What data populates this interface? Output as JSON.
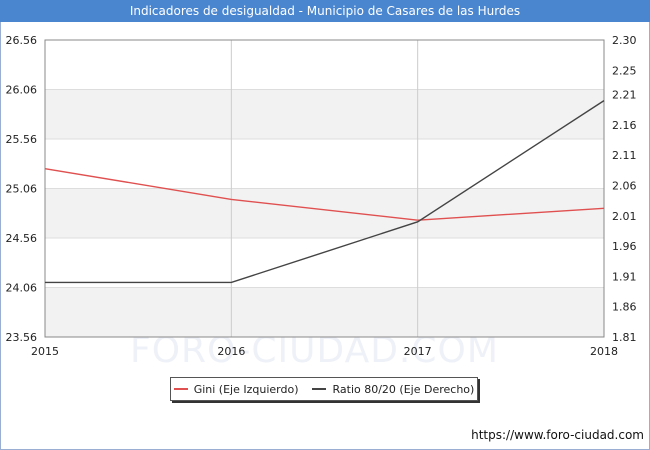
{
  "header": {
    "title": "Indicadores de desigualdad - Municipio de Casares de las Hurdes"
  },
  "watermark": "FORO-CIUDAD.COM",
  "footer": {
    "url": "https://www.foro-ciudad.com"
  },
  "colors": {
    "header_bg": "#4a86d0",
    "gini": "#e05050",
    "ratio": "#444444",
    "band": "#f2f2f2"
  },
  "chart_data": {
    "type": "line",
    "x": [
      "2015",
      "2016",
      "2017",
      "2018"
    ],
    "y_left": {
      "ticks": [
        "23.56",
        "24.06",
        "24.56",
        "25.06",
        "25.56",
        "26.06",
        "26.56"
      ],
      "range": [
        23.56,
        26.56
      ]
    },
    "y_right": {
      "ticks": [
        "1.81",
        "1.86",
        "1.91",
        "1.96",
        "2.01",
        "2.06",
        "2.11",
        "2.16",
        "2.21",
        "2.25",
        "2.30"
      ],
      "range": [
        1.81,
        2.3
      ]
    },
    "series": [
      {
        "name": "Gini (Eje Izquierdo)",
        "axis": "left",
        "values": [
          25.26,
          24.95,
          24.74,
          24.86
        ]
      },
      {
        "name": "Ratio 80/20 (Eje Derecho)",
        "axis": "right",
        "values": [
          1.9,
          1.9,
          2.0,
          2.2
        ]
      }
    ],
    "grid": true,
    "legend_position": "bottom"
  }
}
